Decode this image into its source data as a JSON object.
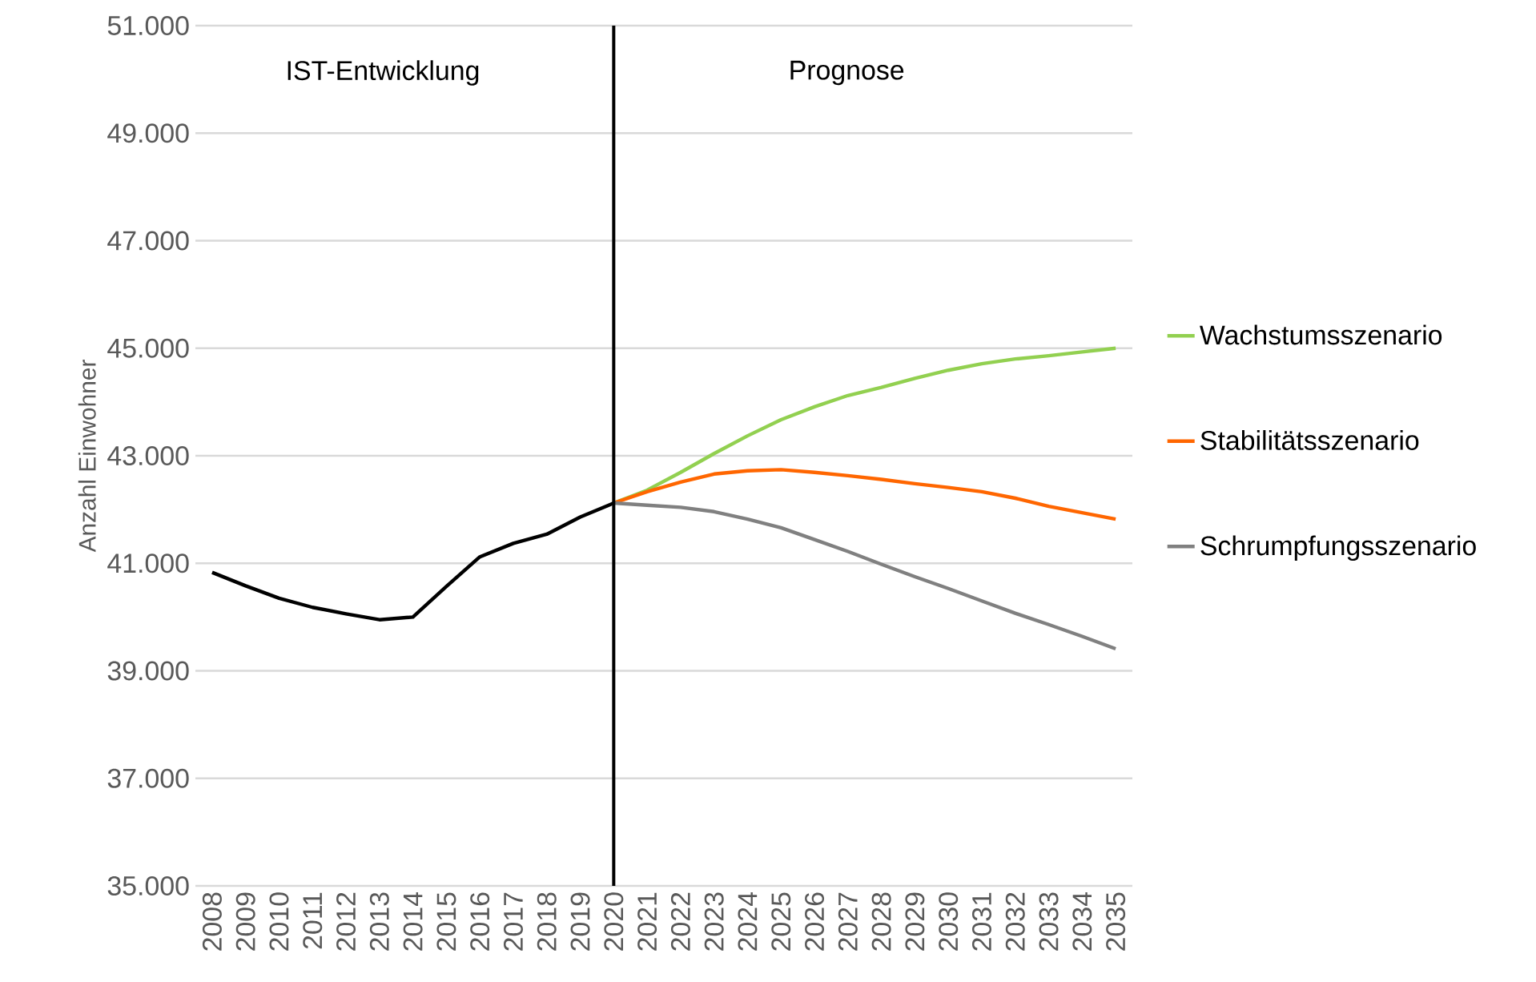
{
  "chart_data": {
    "type": "line",
    "ylabel": "Anzahl Einwohner",
    "categories": [
      "2008",
      "2009",
      "2010",
      "2011",
      "2012",
      "2013",
      "2014",
      "2015",
      "2016",
      "2017",
      "2018",
      "2019",
      "2020",
      "2021",
      "2022",
      "2023",
      "2024",
      "2025",
      "2026",
      "2027",
      "2028",
      "2029",
      "2030",
      "2031",
      "2032",
      "2033",
      "2034",
      "2035"
    ],
    "series": [
      {
        "color": "#000000",
        "values": [
          40830,
          40580,
          40350,
          40180,
          40060,
          39950,
          40000,
          40570,
          41120,
          41370,
          41540,
          41860,
          42120,
          null,
          null,
          null,
          null,
          null,
          null,
          null,
          null,
          null,
          null,
          null,
          null,
          null,
          null,
          null
        ]
      },
      {
        "name": "Wachstumsszenario",
        "color": "#92d050",
        "values": [
          null,
          null,
          null,
          null,
          null,
          null,
          null,
          null,
          null,
          null,
          null,
          null,
          42120,
          42360,
          42690,
          43040,
          43370,
          43670,
          43910,
          44120,
          44270,
          44440,
          44590,
          44710,
          44800,
          44860,
          44930,
          45000
        ]
      },
      {
        "name": "Stabilitätsszenario",
        "color": "#ff6600",
        "values": [
          null,
          null,
          null,
          null,
          null,
          null,
          null,
          null,
          null,
          null,
          null,
          null,
          42120,
          42330,
          42510,
          42660,
          42720,
          42740,
          42690,
          42630,
          42560,
          42480,
          42410,
          42330,
          42210,
          42060,
          41940,
          41820
        ]
      },
      {
        "name": "Schrumpfungsszenario",
        "color": "#808080",
        "values": [
          null,
          null,
          null,
          null,
          null,
          null,
          null,
          null,
          null,
          null,
          null,
          null,
          42120,
          42080,
          42040,
          41960,
          41820,
          41660,
          41440,
          41220,
          40980,
          40750,
          40530,
          40300,
          40070,
          39860,
          39640,
          39410
        ]
      }
    ],
    "ylim": [
      35000,
      51000
    ],
    "yticks": [
      {
        "value": 35000,
        "label": "35.000"
      },
      {
        "value": 37000,
        "label": "37.000"
      },
      {
        "value": 39000,
        "label": "39.000"
      },
      {
        "value": 41000,
        "label": "41.000"
      },
      {
        "value": 43000,
        "label": "43.000"
      },
      {
        "value": 45000,
        "label": "45.000"
      },
      {
        "value": 47000,
        "label": "47.000"
      },
      {
        "value": 49000,
        "label": "49.000"
      },
      {
        "value": 51000,
        "label": "51.000"
      }
    ],
    "grid": "y",
    "legend": "right",
    "ref_lines": [
      {
        "axis": "x",
        "value": "2020",
        "color": "#000000"
      }
    ],
    "annotations": [
      "IST-Entwicklung",
      "Prognose"
    ]
  }
}
